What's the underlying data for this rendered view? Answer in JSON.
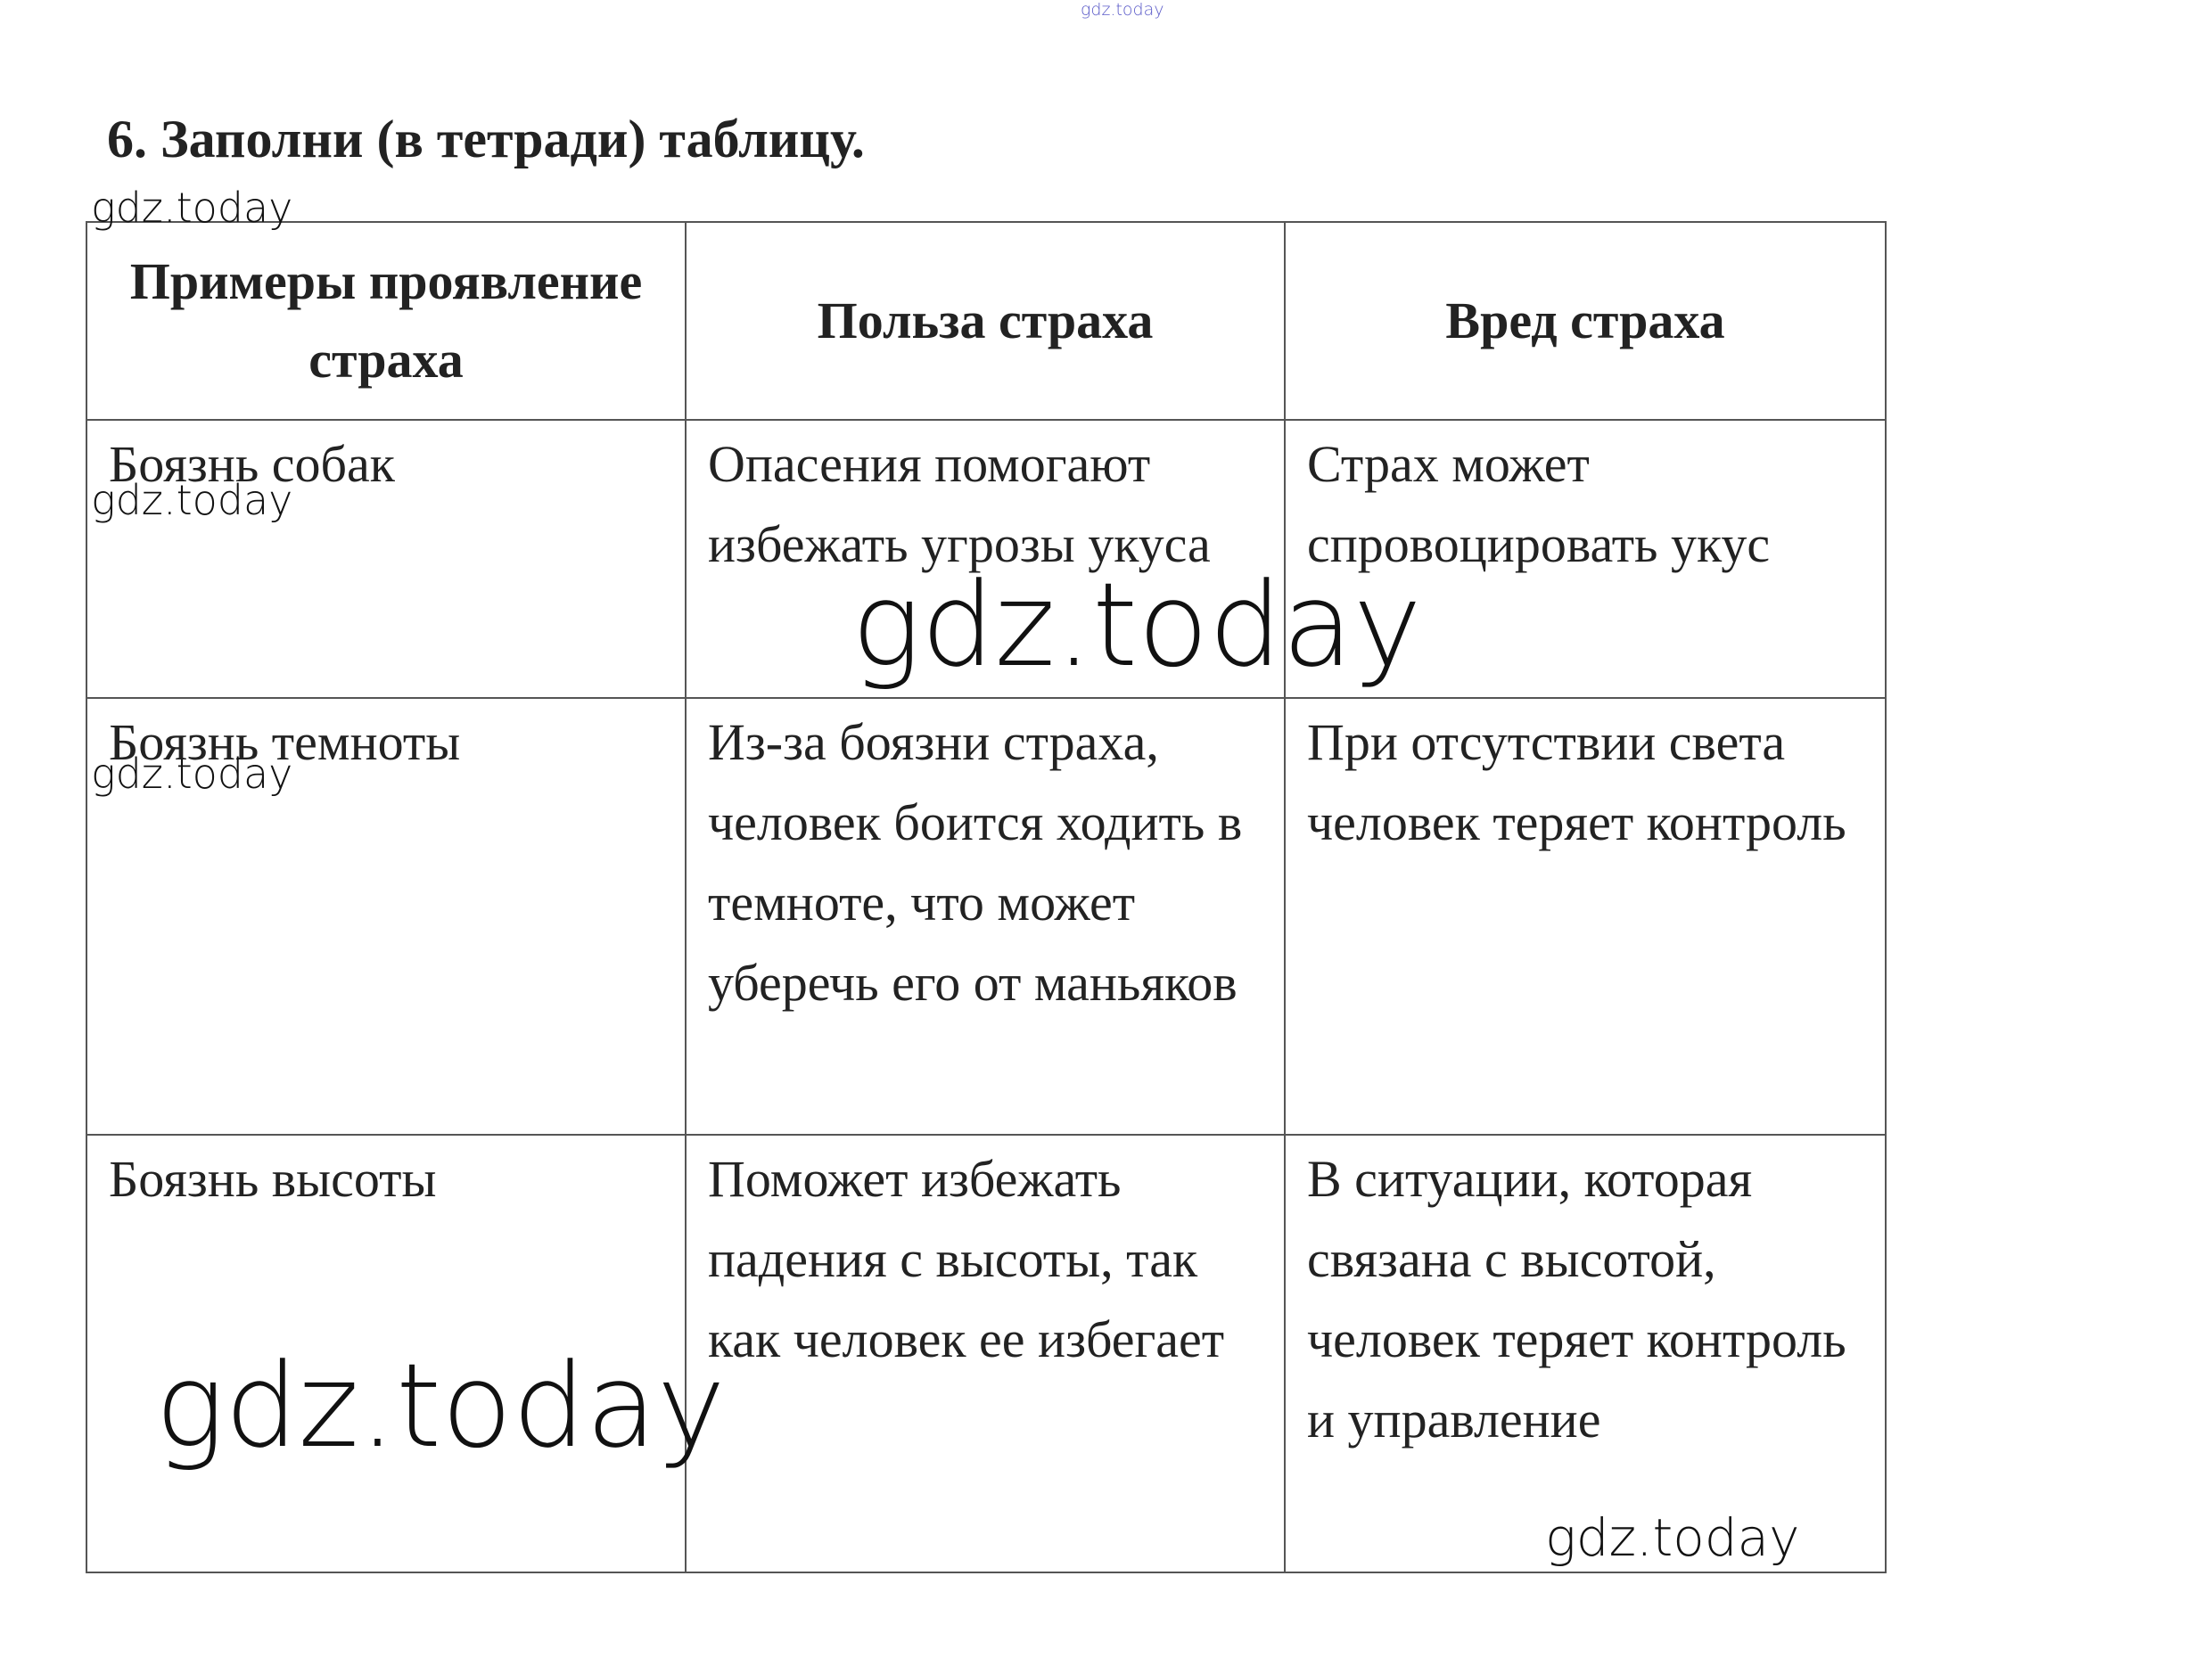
{
  "title": "6. Заполни (в тетради) таблицу.",
  "table": {
    "header": [
      "Примеры проявление страха",
      "Польза страха",
      "Вред страха"
    ],
    "rows": [
      [
        "Боязнь собак",
        "Опасения помогают избежать угрозы укуса",
        "Страх может спровоцировать укус"
      ],
      [
        "Боязнь темноты",
        "Из-за боязни страха, человек боится ходить в темноте, что может уберечь его от маньяков",
        "При отсутствии света человек теряет контроль"
      ],
      [
        "Боязнь высоты",
        "Поможет избежать падения с высоты, так как человек ее избегает",
        "В ситуации, которая связана с высотой, человек теряет контроль и управление"
      ]
    ]
  },
  "watermarks": [
    "gdz.today",
    "gdz.today",
    "gdz.today",
    "gdz.today",
    "gdz.today",
    "gdz.today",
    "gdz.today"
  ]
}
